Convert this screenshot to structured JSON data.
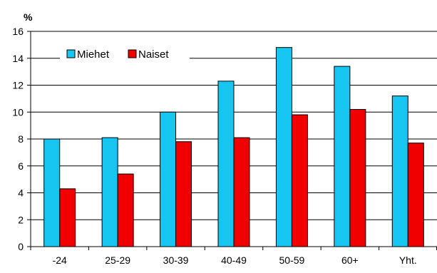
{
  "chart_data": {
    "type": "bar",
    "unit_label": "%",
    "categories": [
      "-24",
      "25-29",
      "30-39",
      "40-49",
      "50-59",
      "60+",
      "Yht."
    ],
    "series": [
      {
        "name": "Miehet",
        "color": "#17C6F0",
        "values": [
          8.0,
          8.1,
          10.0,
          12.3,
          14.8,
          13.4,
          11.2
        ]
      },
      {
        "name": "Naiset",
        "color": "#F00000",
        "values": [
          4.3,
          5.4,
          7.8,
          8.1,
          9.8,
          10.2,
          7.7
        ]
      }
    ],
    "ylim": [
      0,
      16
    ],
    "yticks": [
      0,
      2,
      4,
      6,
      8,
      10,
      12,
      14,
      16
    ],
    "grid": true,
    "legend_position": "top-left"
  }
}
